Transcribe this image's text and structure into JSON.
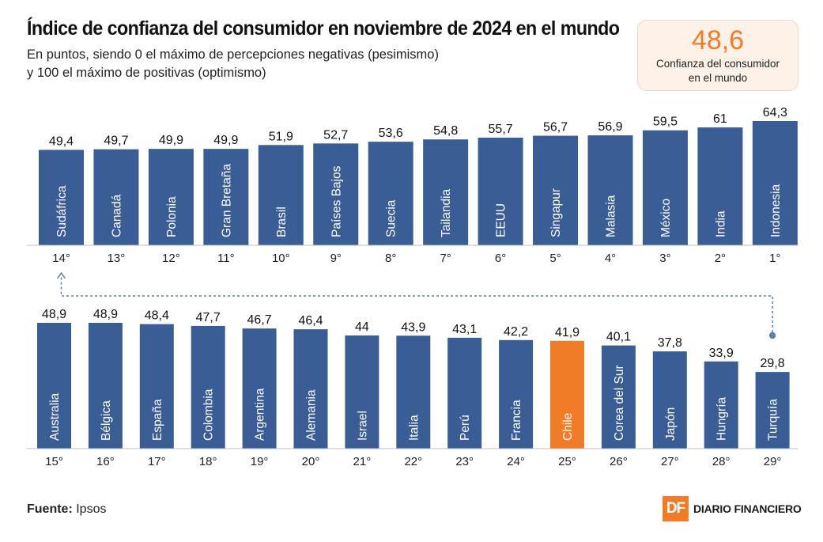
{
  "header": {
    "title": "Índice de confianza del consumidor en noviembre de 2024 en el mundo",
    "subtitle_line1": "En puntos, siendo 0 el máximo de percepciones negativas (pesimismo)",
    "subtitle_line2": "y 100 el máximo de positivas (optimismo)"
  },
  "kpi": {
    "value": "48,6",
    "label_line1": "Confianza del consumidor",
    "label_line2": "en el mundo"
  },
  "colors": {
    "bar": "#3a5d96",
    "highlight": "#f07c28",
    "bar_text": "#ffffff",
    "connector": "#5f7fa6"
  },
  "chart_data": [
    {
      "type": "bar",
      "panel": "top",
      "categories": [
        "Sudáfrica",
        "Canadá",
        "Polonia",
        "Gran Bretaña",
        "Brasil",
        "Países Bajos",
        "Suecia",
        "Tailandia",
        "EEUU",
        "Singapur",
        "Malasia",
        "México",
        "India",
        "Indonesia"
      ],
      "values": [
        49.4,
        49.7,
        49.9,
        49.9,
        51.9,
        52.7,
        53.6,
        54.8,
        55.7,
        56.7,
        56.9,
        59.5,
        61,
        64.3
      ],
      "value_labels": [
        "49,4",
        "49,7",
        "49,9",
        "49,9",
        "51,9",
        "52,7",
        "53,6",
        "54,8",
        "55,7",
        "56,7",
        "56,9",
        "59,5",
        "61",
        "64,3"
      ],
      "ranks": [
        "14°",
        "13°",
        "12°",
        "11°",
        "10°",
        "9°",
        "8°",
        "7°",
        "6°",
        "5°",
        "4°",
        "3°",
        "2°",
        "1°"
      ],
      "highlight": null
    },
    {
      "type": "bar",
      "panel": "bottom",
      "categories": [
        "Australia",
        "Bélgica",
        "España",
        "Colombia",
        "Argentina",
        "Alemania",
        "Israel",
        "Italia",
        "Perú",
        "Francia",
        "Chile",
        "Corea del Sur",
        "Japón",
        "Hungría",
        "Turquía"
      ],
      "values": [
        48.9,
        48.9,
        48.4,
        47.7,
        46.7,
        46.4,
        44,
        43.9,
        43.1,
        42.2,
        41.9,
        40.1,
        37.8,
        33.9,
        29.8
      ],
      "value_labels": [
        "48,9",
        "48,9",
        "48,4",
        "47,7",
        "46,7",
        "46,4",
        "44",
        "43,9",
        "43,1",
        "42,2",
        "41,9",
        "40,1",
        "37,8",
        "33,9",
        "29,8"
      ],
      "ranks": [
        "15°",
        "16°",
        "17°",
        "18°",
        "19°",
        "20°",
        "21°",
        "22°",
        "23°",
        "24°",
        "25°",
        "26°",
        "27°",
        "28°",
        "29°"
      ],
      "highlight": "Chile"
    }
  ],
  "footer": {
    "source_label": "Fuente:",
    "source_value": "Ipsos",
    "logo_mark": "DF",
    "logo_text": "DIARIO FINANCIERO"
  }
}
